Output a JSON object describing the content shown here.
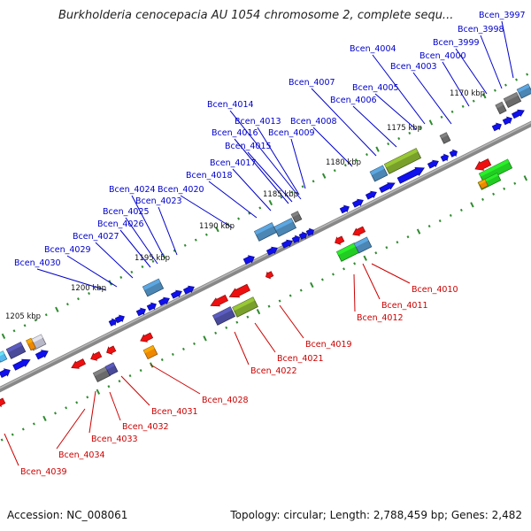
{
  "title": "Burkholderia cenocepacia AU 1054 chromosome 2, complete sequ...",
  "footer": {
    "accession": "Accession: NC_008061",
    "topology": "Topology: circular; Length: 2,788,459 bp; Genes: 2,482"
  },
  "colors": {
    "background": "#ffffff",
    "backbone": "#888888",
    "tick": "#2e8b2e",
    "forward_gene": "#1010ee",
    "reverse_gene": "#ee1010",
    "forward_label": "#0000cc",
    "reverse_label": "#cc0000",
    "steel_blue": "#4b86b4",
    "olive": "#7aa02c",
    "green": "#22cc22",
    "purple": "#4a4a9a",
    "gray": "#6a6a6a",
    "orange": "#ee8800",
    "sky": "#55b8ee"
  },
  "scale_labels": [
    "1170 kbp",
    "1175 kbp",
    "1180 kbp",
    "1185 kbp",
    "1190 kbp",
    "1195 kbp",
    "1200 kbp",
    "1205 kbp"
  ],
  "forward_genes": [
    "Bcen_3997",
    "Bcen_3998",
    "Bcen_3999",
    "Bcen_4000",
    "Bcen_4003",
    "Bcen_4004",
    "Bcen_4005",
    "Bcen_4006",
    "Bcen_4007",
    "Bcen_4008",
    "Bcen_4009",
    "Bcen_4013",
    "Bcen_4014",
    "Bcen_4015",
    "Bcen_4016",
    "Bcen_4017",
    "Bcen_4018",
    "Bcen_4020",
    "Bcen_4023",
    "Bcen_4024",
    "Bcen_4025",
    "Bcen_4026",
    "Bcen_4027",
    "Bcen_4029",
    "Bcen_4030"
  ],
  "reverse_genes": [
    "Bcen_4010",
    "Bcen_4011",
    "Bcen_4012",
    "Bcen_4019",
    "Bcen_4021",
    "Bcen_4022",
    "Bcen_4028",
    "Bcen_4031",
    "Bcen_4032",
    "Bcen_4033",
    "Bcen_4034",
    "Bcen_4039"
  ]
}
